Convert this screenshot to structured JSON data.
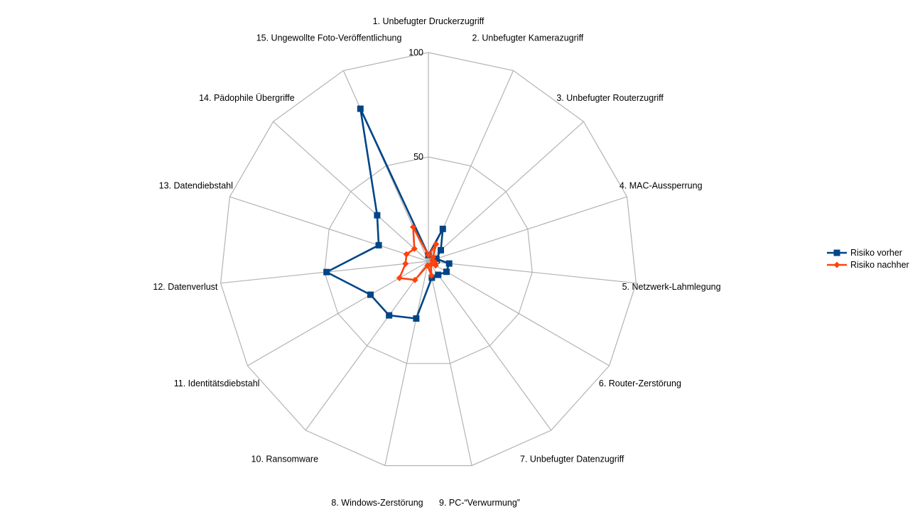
{
  "chart_data": {
    "type": "radar",
    "title": "",
    "categories": [
      "1. Unbefugter Druckerzugriff",
      "2. Unbefugter Kamerazugriff",
      "3. Unbefugter Routerzugriff",
      "4. MAC-Aussperrung",
      "5. Netzwerk-Lahmlegung",
      "6. Router-Zerstörung",
      "7. Unbefugter Datenzugriff",
      "8. Windows-Zerstörung",
      "9. PC-“Verwurmung”",
      "10. Ransomware",
      "11. Identitätsdiebstahl",
      "12. Datenverlust",
      "13. Datendiebstahl",
      "14. Pädophile Übergriffe",
      "15. Ungewollte Foto-Veröffentlichung"
    ],
    "series": [
      {
        "name": "Risiko vorher",
        "color": "#004586",
        "marker": "square",
        "values": [
          3,
          17,
          8,
          4,
          10,
          10,
          8,
          8,
          28,
          32,
          32,
          49,
          25,
          33,
          80
        ]
      },
      {
        "name": "Risiko nachher",
        "color": "#ff420e",
        "marker": "diamond",
        "values": [
          3,
          9,
          3,
          2,
          3,
          4,
          2,
          7,
          2,
          11,
          16,
          11,
          11,
          9,
          18
        ]
      }
    ],
    "ylim": [
      0,
      100
    ],
    "ticks": [
      "0",
      "50",
      "100"
    ],
    "grid": true,
    "legend": "right"
  }
}
